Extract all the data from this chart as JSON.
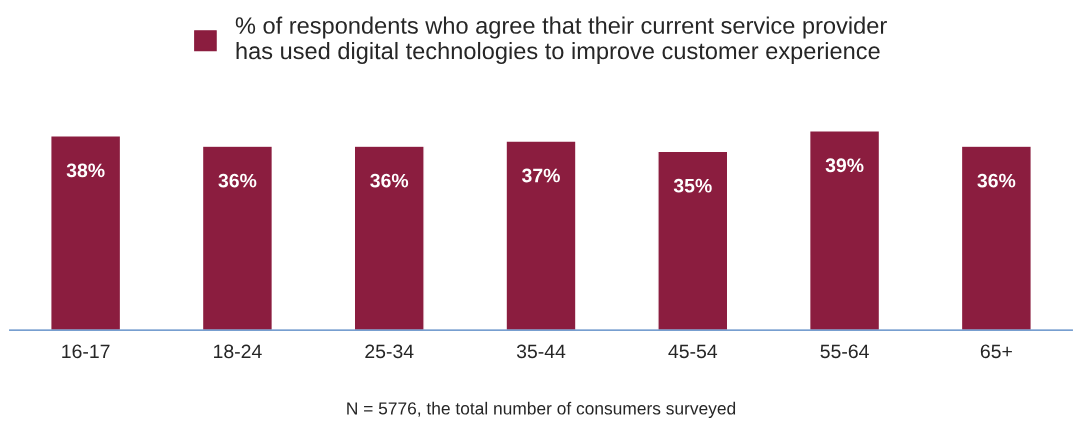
{
  "chart_data": {
    "type": "bar",
    "categories": [
      "16-17",
      "18-24",
      "25-34",
      "35-44",
      "45-54",
      "55-64",
      "65+"
    ],
    "series": [
      {
        "name": "% of respondents who agree that their current service provider\nhas used digital technologies to improve customer experience",
        "color": "#8b1d3f",
        "values": [
          38,
          36,
          36,
          37,
          35,
          39,
          36
        ],
        "value_labels": [
          "38%",
          "36%",
          "36%",
          "37%",
          "35%",
          "39%",
          "36%"
        ]
      }
    ],
    "legend": "top",
    "grid": false,
    "annotations": [
      "N = 5776, the total number of consumers surveyed"
    ]
  }
}
